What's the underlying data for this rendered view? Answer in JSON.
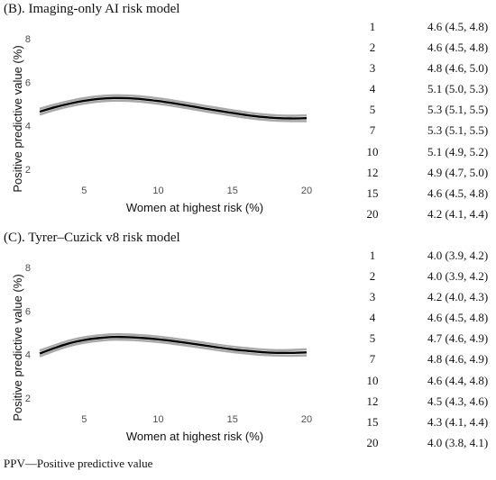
{
  "chart_data": [
    {
      "type": "line",
      "title": "(B). Imaging-only AI risk model",
      "xlabel": "Women at highest risk (%)",
      "ylabel": "Positive predictive value (%)",
      "xlim": [
        2,
        20
      ],
      "ylim": [
        1.5,
        8.3
      ],
      "xticks": [
        5,
        10,
        15,
        20
      ],
      "yticks": [
        2,
        4,
        6,
        8
      ],
      "grid": false,
      "series": [
        {
          "x": [
            2,
            3,
            4,
            5,
            6,
            7,
            8,
            9,
            10,
            11,
            12,
            13,
            14,
            15,
            16,
            17,
            18,
            19,
            20
          ],
          "values": [
            4.65,
            4.85,
            5.02,
            5.15,
            5.24,
            5.28,
            5.27,
            5.22,
            5.14,
            5.04,
            4.93,
            4.81,
            4.7,
            4.59,
            4.49,
            4.41,
            4.36,
            4.34,
            4.35
          ],
          "lower": [
            4.52,
            4.73,
            4.9,
            5.03,
            5.12,
            5.16,
            5.15,
            5.1,
            5.02,
            4.92,
            4.81,
            4.69,
            4.58,
            4.47,
            4.37,
            4.29,
            4.24,
            4.22,
            4.22
          ],
          "upper": [
            4.78,
            4.97,
            5.14,
            5.27,
            5.36,
            5.4,
            5.39,
            5.34,
            5.26,
            5.16,
            5.05,
            4.93,
            4.82,
            4.71,
            4.61,
            4.53,
            4.48,
            4.46,
            4.48
          ]
        }
      ],
      "table": {
        "rows": [
          {
            "pct": "1",
            "ppv": "4.6 (4.5, 4.8)"
          },
          {
            "pct": "2",
            "ppv": "4.6 (4.5, 4.8)"
          },
          {
            "pct": "3",
            "ppv": "4.8 (4.6, 5.0)"
          },
          {
            "pct": "4",
            "ppv": "5.1 (5.0, 5.3)"
          },
          {
            "pct": "5",
            "ppv": "5.3 (5.1, 5.5)"
          },
          {
            "pct": "7",
            "ppv": "5.3 (5.1, 5.5)"
          },
          {
            "pct": "10",
            "ppv": "5.1 (4.9, 5.2)"
          },
          {
            "pct": "12",
            "ppv": "4.9 (4.7, 5.0)"
          },
          {
            "pct": "15",
            "ppv": "4.6 (4.5, 4.8)"
          },
          {
            "pct": "20",
            "ppv": "4.2 (4.1, 4.4)"
          }
        ]
      }
    },
    {
      "type": "line",
      "title": "(C). Tyrer–Cuzick v8 risk model",
      "xlabel": "Women at highest risk (%)",
      "ylabel": "Positive predictive value (%)",
      "xlim": [
        2,
        20
      ],
      "ylim": [
        1.5,
        8.3
      ],
      "xticks": [
        5,
        10,
        15,
        20
      ],
      "yticks": [
        2,
        4,
        6,
        8
      ],
      "grid": false,
      "series": [
        {
          "x": [
            2,
            3,
            4,
            5,
            6,
            7,
            8,
            9,
            10,
            11,
            12,
            13,
            14,
            15,
            16,
            17,
            18,
            19,
            20
          ],
          "values": [
            4.05,
            4.3,
            4.52,
            4.67,
            4.76,
            4.81,
            4.8,
            4.76,
            4.7,
            4.62,
            4.53,
            4.43,
            4.33,
            4.24,
            4.17,
            4.11,
            4.08,
            4.08,
            4.1
          ],
          "lower": [
            3.92,
            4.18,
            4.4,
            4.55,
            4.64,
            4.69,
            4.68,
            4.64,
            4.58,
            4.5,
            4.41,
            4.31,
            4.21,
            4.12,
            4.05,
            3.99,
            3.96,
            3.95,
            3.96
          ],
          "upper": [
            4.18,
            4.42,
            4.64,
            4.79,
            4.88,
            4.93,
            4.92,
            4.88,
            4.82,
            4.74,
            4.65,
            4.55,
            4.45,
            4.36,
            4.29,
            4.23,
            4.2,
            4.21,
            4.24
          ]
        }
      ],
      "table": {
        "rows": [
          {
            "pct": "1",
            "ppv": "4.0 (3.9, 4.2)"
          },
          {
            "pct": "2",
            "ppv": "4.0 (3.9, 4.2)"
          },
          {
            "pct": "3",
            "ppv": "4.2 (4.0, 4.3)"
          },
          {
            "pct": "4",
            "ppv": "4.6 (4.5, 4.8)"
          },
          {
            "pct": "5",
            "ppv": "4.7 (4.6, 4.9)"
          },
          {
            "pct": "7",
            "ppv": "4.8 (4.6, 4.9)"
          },
          {
            "pct": "10",
            "ppv": "4.6 (4.4, 4.8)"
          },
          {
            "pct": "12",
            "ppv": "4.5 (4.3, 4.6)"
          },
          {
            "pct": "15",
            "ppv": "4.3 (4.1, 4.4)"
          },
          {
            "pct": "20",
            "ppv": "4.0 (3.8, 4.1)"
          }
        ]
      }
    }
  ],
  "footnote": "PPV—Positive predictive value",
  "colors": {
    "estimate": "#000000",
    "confidence_band": "#a9a9a9",
    "tick_label": "#4d4d4d"
  }
}
